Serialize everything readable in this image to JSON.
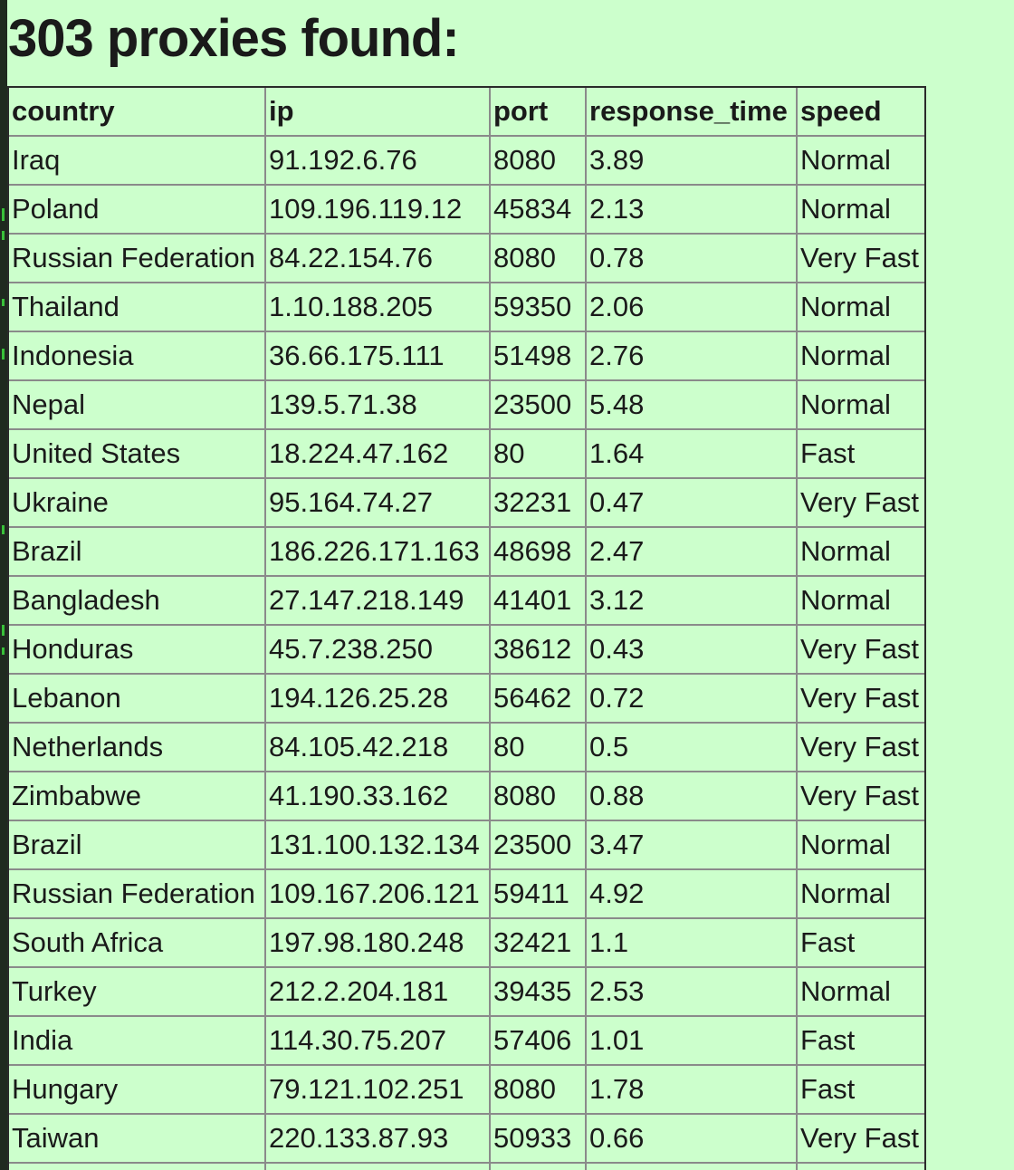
{
  "page": {
    "heading": "303 proxies found:",
    "background_color": "#ccffcc"
  },
  "table": {
    "columns": [
      "country",
      "ip",
      "port",
      "response_time",
      "speed"
    ],
    "rows": [
      [
        "Iraq",
        "91.192.6.76",
        "8080",
        "3.89",
        "Normal"
      ],
      [
        "Poland",
        "109.196.119.12",
        "45834",
        "2.13",
        "Normal"
      ],
      [
        "Russian Federation",
        "84.22.154.76",
        "8080",
        "0.78",
        "Very Fast"
      ],
      [
        "Thailand",
        "1.10.188.205",
        "59350",
        "2.06",
        "Normal"
      ],
      [
        "Indonesia",
        "36.66.175.111",
        "51498",
        "2.76",
        "Normal"
      ],
      [
        "Nepal",
        "139.5.71.38",
        "23500",
        "5.48",
        "Normal"
      ],
      [
        "United States",
        "18.224.47.162",
        "80",
        "1.64",
        "Fast"
      ],
      [
        "Ukraine",
        "95.164.74.27",
        "32231",
        "0.47",
        "Very Fast"
      ],
      [
        "Brazil",
        "186.226.171.163",
        "48698",
        "2.47",
        "Normal"
      ],
      [
        "Bangladesh",
        "27.147.218.149",
        "41401",
        "3.12",
        "Normal"
      ],
      [
        "Honduras",
        "45.7.238.250",
        "38612",
        "0.43",
        "Very Fast"
      ],
      [
        "Lebanon",
        "194.126.25.28",
        "56462",
        "0.72",
        "Very Fast"
      ],
      [
        "Netherlands",
        "84.105.42.218",
        "80",
        "0.5",
        "Very Fast"
      ],
      [
        "Zimbabwe",
        "41.190.33.162",
        "8080",
        "0.88",
        "Very Fast"
      ],
      [
        "Brazil",
        "131.100.132.134",
        "23500",
        "3.47",
        "Normal"
      ],
      [
        "Russian Federation",
        "109.167.206.121",
        "59411",
        "4.92",
        "Normal"
      ],
      [
        "South Africa",
        "197.98.180.248",
        "32421",
        "1.1",
        "Fast"
      ],
      [
        "Turkey",
        "212.2.204.181",
        "39435",
        "2.53",
        "Normal"
      ],
      [
        "India",
        "114.30.75.207",
        "57406",
        "1.01",
        "Fast"
      ],
      [
        "Hungary",
        "79.121.102.251",
        "8080",
        "1.78",
        "Fast"
      ],
      [
        "Taiwan",
        "220.133.87.93",
        "50933",
        "0.66",
        "Very Fast"
      ],
      [
        "",
        "",
        "",
        "",
        ""
      ]
    ]
  }
}
